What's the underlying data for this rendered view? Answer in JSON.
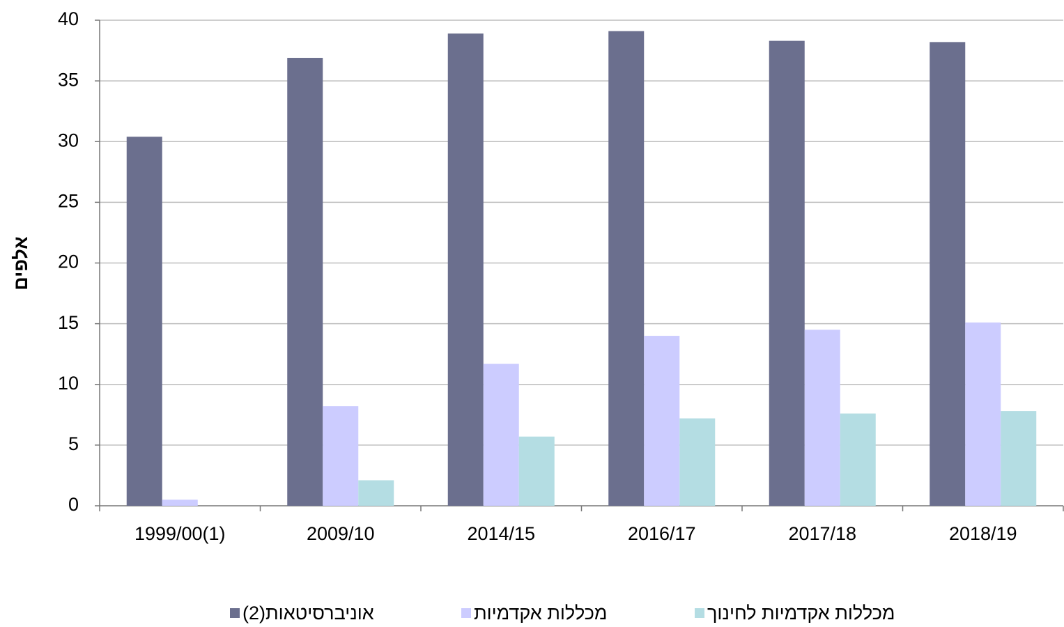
{
  "chart_data": {
    "type": "bar",
    "y_label": "אלפים",
    "categories": [
      "1999/00(1)",
      "2009/10",
      "2014/15",
      "2016/17",
      "2017/18",
      "2018/19"
    ],
    "series": [
      {
        "name": "אוניברסיטאות(2)",
        "color": "#6b6f8e",
        "values": [
          30.4,
          36.9,
          38.9,
          39.1,
          38.3,
          38.2
        ]
      },
      {
        "name": "מכללות אקדמיות",
        "color": "#ccccff",
        "values": [
          0.5,
          8.2,
          11.7,
          14.0,
          14.5,
          15.1
        ]
      },
      {
        "name": "מכללות אקדמיות לחינוך",
        "color": "#b4dde3",
        "values": [
          null,
          2.1,
          5.7,
          7.2,
          7.6,
          7.8
        ]
      }
    ],
    "ylim": [
      0,
      40
    ],
    "yticks": [
      0,
      5,
      10,
      15,
      20,
      25,
      30,
      35,
      40
    ],
    "grid": true,
    "legend": "bottom"
  }
}
